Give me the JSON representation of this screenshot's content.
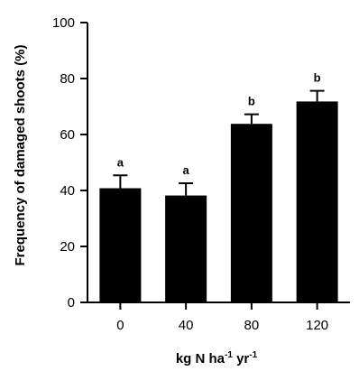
{
  "chart_data": {
    "type": "bar",
    "categories": [
      "0",
      "40",
      "80",
      "120"
    ],
    "values": [
      40.8,
      38.2,
      63.8,
      71.8
    ],
    "errors": [
      4.6,
      4.4,
      3.4,
      3.8
    ],
    "significance": [
      "a",
      "a",
      "b",
      "b"
    ],
    "title": "",
    "ylabel": "Frequency of damaged shoots (%)",
    "xlabel": {
      "parts": [
        {
          "text": "kg N ha",
          "sup": false
        },
        {
          "text": "-1",
          "sup": true
        },
        {
          "text": " yr",
          "sup": false
        },
        {
          "text": "-1",
          "sup": true
        }
      ]
    },
    "ylim": [
      0,
      100
    ],
    "yticks": [
      0,
      20,
      40,
      60,
      80,
      100
    ],
    "grid": false,
    "bar_color": "#000000"
  }
}
